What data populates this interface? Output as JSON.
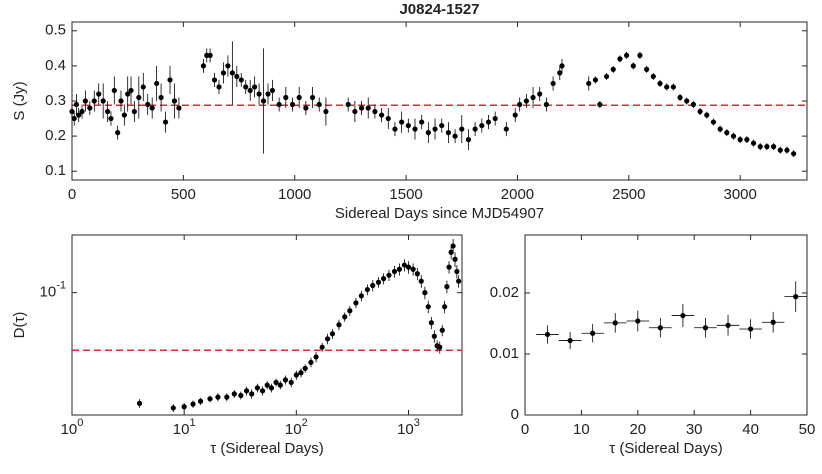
{
  "chart_data": [
    {
      "type": "scatter",
      "title": "J0824-1527",
      "xlabel": "Sidereal Days since MJD54907",
      "ylabel": "S (Jy)",
      "xlim": [
        0,
        3300
      ],
      "xticks": [
        0,
        500,
        1000,
        1500,
        2000,
        2500,
        3000
      ],
      "ylim": [
        0.075,
        0.525
      ],
      "yticks": [
        0.1,
        0.2,
        0.3,
        0.4,
        0.5
      ],
      "color": "#000000",
      "hline": {
        "value": 0.288,
        "color": "#e8262a",
        "style": "dashed"
      },
      "x": [
        0,
        10,
        20,
        30,
        45,
        60,
        80,
        100,
        120,
        140,
        160,
        175,
        190,
        205,
        220,
        235,
        250,
        265,
        280,
        300,
        320,
        340,
        360,
        380,
        400,
        420,
        440,
        460,
        480,
        590,
        605,
        620,
        640,
        660,
        680,
        700,
        720,
        740,
        760,
        780,
        800,
        820,
        840,
        860,
        880,
        900,
        930,
        960,
        990,
        1020,
        1050,
        1080,
        1110,
        1140,
        1240,
        1270,
        1300,
        1330,
        1360,
        1390,
        1420,
        1450,
        1480,
        1510,
        1540,
        1570,
        1600,
        1630,
        1660,
        1690,
        1720,
        1750,
        1780,
        1810,
        1840,
        1870,
        1900,
        1950,
        1990,
        2010,
        2040,
        2070,
        2100,
        2130,
        2160,
        2190,
        2200,
        2320,
        2350,
        2370,
        2400,
        2430,
        2460,
        2490,
        2520,
        2550,
        2580,
        2610,
        2640,
        2670,
        2700,
        2730,
        2760,
        2790,
        2820,
        2850,
        2880,
        2910,
        2940,
        2970,
        3000,
        3030,
        3060,
        3090,
        3120,
        3150,
        3180,
        3210,
        3240
      ],
      "values": [
        0.27,
        0.25,
        0.29,
        0.26,
        0.27,
        0.3,
        0.28,
        0.3,
        0.32,
        0.3,
        0.27,
        0.25,
        0.33,
        0.21,
        0.3,
        0.26,
        0.32,
        0.33,
        0.27,
        0.31,
        0.34,
        0.29,
        0.28,
        0.35,
        0.31,
        0.24,
        0.36,
        0.3,
        0.28,
        0.4,
        0.43,
        0.43,
        0.36,
        0.34,
        0.38,
        0.4,
        0.38,
        0.37,
        0.36,
        0.34,
        0.33,
        0.34,
        0.32,
        0.3,
        0.32,
        0.33,
        0.29,
        0.31,
        0.29,
        0.31,
        0.28,
        0.31,
        0.29,
        0.27,
        0.29,
        0.27,
        0.28,
        0.28,
        0.27,
        0.26,
        0.25,
        0.22,
        0.24,
        0.23,
        0.22,
        0.24,
        0.21,
        0.22,
        0.23,
        0.21,
        0.2,
        0.22,
        0.19,
        0.22,
        0.23,
        0.24,
        0.25,
        0.22,
        0.26,
        0.29,
        0.3,
        0.31,
        0.32,
        0.29,
        0.35,
        0.38,
        0.4,
        0.35,
        0.36,
        0.29,
        0.37,
        0.39,
        0.42,
        0.43,
        0.4,
        0.43,
        0.39,
        0.37,
        0.35,
        0.34,
        0.34,
        0.31,
        0.3,
        0.29,
        0.27,
        0.26,
        0.24,
        0.22,
        0.21,
        0.2,
        0.19,
        0.19,
        0.18,
        0.17,
        0.17,
        0.17,
        0.16,
        0.16,
        0.15
      ],
      "errors": [
        0.02,
        0.02,
        0.03,
        0.02,
        0.02,
        0.03,
        0.02,
        0.03,
        0.03,
        0.05,
        0.03,
        0.02,
        0.04,
        0.02,
        0.03,
        0.03,
        0.05,
        0.04,
        0.03,
        0.06,
        0.04,
        0.03,
        0.03,
        0.05,
        0.04,
        0.03,
        0.04,
        0.05,
        0.03,
        0.02,
        0.02,
        0.02,
        0.02,
        0.02,
        0.03,
        0.03,
        0.09,
        0.03,
        0.02,
        0.02,
        0.03,
        0.03,
        0.03,
        0.15,
        0.03,
        0.03,
        0.02,
        0.03,
        0.02,
        0.03,
        0.02,
        0.03,
        0.02,
        0.04,
        0.02,
        0.03,
        0.02,
        0.03,
        0.02,
        0.02,
        0.03,
        0.02,
        0.03,
        0.02,
        0.03,
        0.02,
        0.03,
        0.03,
        0.02,
        0.03,
        0.02,
        0.04,
        0.03,
        0.02,
        0.02,
        0.02,
        0.02,
        0.02,
        0.02,
        0.02,
        0.02,
        0.03,
        0.02,
        0.02,
        0.02,
        0.02,
        0.02,
        0.02,
        0.01,
        0.01,
        0.01,
        0.01,
        0.01,
        0.01,
        0.01,
        0.01,
        0.01,
        0.01,
        0.01,
        0.01,
        0.01,
        0.01,
        0.01,
        0.01,
        0.01,
        0.01,
        0.01,
        0.01,
        0.01,
        0.01,
        0.01,
        0.01,
        0.01,
        0.01,
        0.01,
        0.01,
        0.01,
        0.01,
        0.01
      ]
    },
    {
      "type": "scatter",
      "xlabel": "τ (Sidereal Days)",
      "ylabel": "D(τ)",
      "xscale": "log",
      "yscale": "log",
      "xlim": [
        1,
        3000
      ],
      "xticks": [
        {
          "value": 1,
          "label": "10",
          "superscript": "0"
        },
        {
          "value": 10,
          "label": "10",
          "superscript": "1"
        },
        {
          "value": 100,
          "label": "10",
          "superscript": "2"
        },
        {
          "value": 1000,
          "label": "10",
          "superscript": "3"
        }
      ],
      "ylim": [
        0.0143,
        0.25
      ],
      "yticks": [
        {
          "value": 0.1,
          "label": "10",
          "superscript": "-1"
        }
      ],
      "color": "#000000",
      "hline": {
        "value": 0.04,
        "color": "#e8262a",
        "style": "dashed"
      },
      "x": [
        4,
        8,
        10,
        12,
        14,
        17,
        20,
        24,
        28,
        32,
        36,
        40,
        45,
        50,
        55,
        60,
        66,
        72,
        80,
        90,
        100,
        110,
        120,
        135,
        150,
        170,
        190,
        210,
        240,
        270,
        300,
        340,
        380,
        430,
        480,
        540,
        600,
        670,
        750,
        830,
        920,
        1000,
        1100,
        1200,
        1300,
        1400,
        1500,
        1600,
        1700,
        1800,
        1900,
        2000,
        2100,
        2200,
        2300,
        2400,
        2500,
        2600,
        2700,
        2800
      ],
      "values": [
        0.0172,
        0.016,
        0.0163,
        0.017,
        0.0178,
        0.0185,
        0.019,
        0.019,
        0.02,
        0.0195,
        0.021,
        0.02,
        0.022,
        0.021,
        0.023,
        0.022,
        0.024,
        0.023,
        0.025,
        0.024,
        0.027,
        0.028,
        0.03,
        0.033,
        0.036,
        0.042,
        0.048,
        0.052,
        0.06,
        0.068,
        0.075,
        0.085,
        0.095,
        0.105,
        0.112,
        0.118,
        0.125,
        0.132,
        0.14,
        0.145,
        0.155,
        0.15,
        0.145,
        0.135,
        0.12,
        0.1,
        0.08,
        0.062,
        0.05,
        0.043,
        0.042,
        0.055,
        0.08,
        0.11,
        0.15,
        0.19,
        0.21,
        0.17,
        0.14,
        0.12
      ],
      "errors": [
        0.0012,
        0.001,
        0.001,
        0.001,
        0.001,
        0.001,
        0.0012,
        0.0012,
        0.0012,
        0.0012,
        0.0015,
        0.0015,
        0.0015,
        0.0015,
        0.0015,
        0.0015,
        0.0015,
        0.0015,
        0.0018,
        0.0018,
        0.002,
        0.002,
        0.002,
        0.0025,
        0.003,
        0.003,
        0.004,
        0.004,
        0.005,
        0.005,
        0.006,
        0.007,
        0.008,
        0.009,
        0.01,
        0.01,
        0.011,
        0.012,
        0.013,
        0.014,
        0.015,
        0.015,
        0.014,
        0.013,
        0.012,
        0.01,
        0.008,
        0.006,
        0.005,
        0.004,
        0.004,
        0.005,
        0.008,
        0.011,
        0.015,
        0.02,
        0.025,
        0.02,
        0.015,
        0.012
      ]
    },
    {
      "type": "scatter",
      "xlabel": "τ (Sidereal Days)",
      "xlim": [
        0,
        50
      ],
      "xticks": [
        0,
        10,
        20,
        30,
        40,
        50
      ],
      "ylim": [
        0,
        0.0295
      ],
      "yticks": [
        0,
        0.01,
        0.02
      ],
      "color": "#000000",
      "x": [
        4,
        8,
        12,
        16,
        20,
        24,
        28,
        32,
        36,
        40,
        44,
        48
      ],
      "values": [
        0.0132,
        0.0122,
        0.0134,
        0.0151,
        0.0154,
        0.0143,
        0.0163,
        0.0143,
        0.0147,
        0.0141,
        0.0152,
        0.0194
      ],
      "errors": [
        0.0015,
        0.0014,
        0.0015,
        0.0016,
        0.0017,
        0.0016,
        0.0019,
        0.0016,
        0.0017,
        0.0016,
        0.0017,
        0.0025
      ],
      "xerrors": [
        2,
        2,
        2,
        2,
        2,
        2,
        2,
        2,
        2,
        2,
        2,
        2
      ]
    }
  ]
}
